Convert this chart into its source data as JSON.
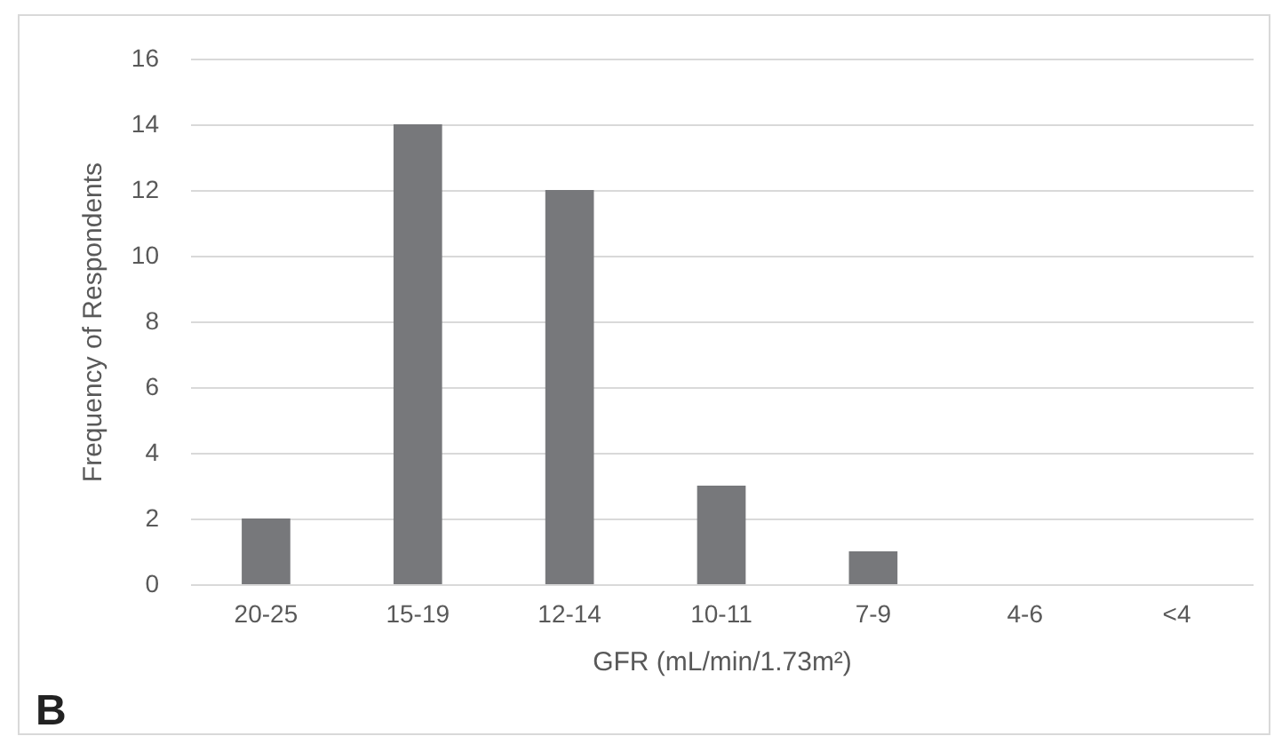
{
  "chart_data": {
    "type": "bar",
    "categories": [
      "20-25",
      "15-19",
      "12-14",
      "10-11",
      "7-9",
      "4-6",
      "<4"
    ],
    "values": [
      2,
      14,
      12,
      3,
      1,
      0,
      0
    ],
    "color": "#77787b",
    "xlabel": "GFR (mL/min/1.73m²)",
    "ylabel": "Frequency of Respondents",
    "ylim": [
      0,
      16
    ],
    "yticks": [
      0,
      2,
      4,
      6,
      8,
      10,
      12,
      14,
      16
    ],
    "grid": "y",
    "annotations": [
      "B"
    ]
  }
}
